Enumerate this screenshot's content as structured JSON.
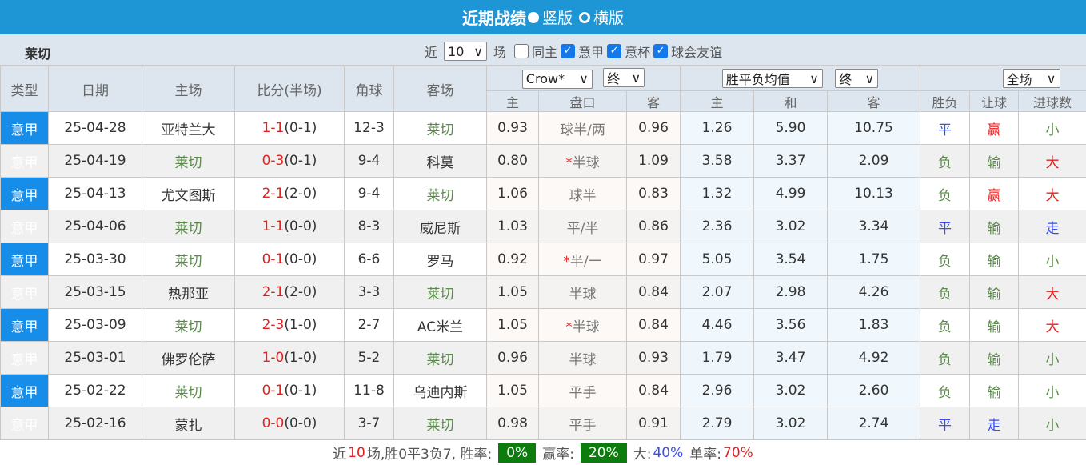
{
  "header": {
    "title": "近期战绩",
    "option_vertical": "竖版",
    "option_horizontal": "横版",
    "selected": "竖版"
  },
  "filter": {
    "team": "莱切",
    "recent_label": "近",
    "count": "10",
    "games_label": "场",
    "same_home": "同主",
    "same_home_checked": false,
    "comps": [
      {
        "label": "意甲",
        "checked": true
      },
      {
        "label": "意杯",
        "checked": true
      },
      {
        "label": "球会友谊",
        "checked": true
      }
    ]
  },
  "columns": {
    "type": "类型",
    "date": "日期",
    "home": "主场",
    "score": "比分(半场)",
    "corner": "角球",
    "away": "客场",
    "asian_company": "Crow*",
    "asian_stage": "终",
    "euro_type": "胜平负均值",
    "euro_stage": "终",
    "range": "全场",
    "sub": [
      "主",
      "盘口",
      "客",
      "主",
      "和",
      "客",
      "胜负",
      "让球",
      "进球数"
    ]
  },
  "arrow": "∨",
  "colors": {
    "header": "#1e96d6",
    "type_cell": "#168de8",
    "lecce": "#5a8a4a",
    "score": "#e32020",
    "badge": "#0c7d0c"
  },
  "rows": [
    {
      "type": "意甲",
      "date": "25-04-28",
      "home": "亚特兰大",
      "score": "1-1",
      "half": "(0-1)",
      "corner": "12-3",
      "away": "莱切",
      "ah": "0.93",
      "line": "球半/两",
      "star": false,
      "aa": "0.96",
      "eh": "1.26",
      "ed": "5.90",
      "ea": "10.75",
      "res": "平",
      "hc": "赢",
      "ou": "小"
    },
    {
      "type": "意甲",
      "date": "25-04-19",
      "home": "莱切",
      "score": "0-3",
      "half": "(0-1)",
      "corner": "9-4",
      "away": "科莫",
      "ah": "0.80",
      "line": "半球",
      "star": true,
      "aa": "1.09",
      "eh": "3.58",
      "ed": "3.37",
      "ea": "2.09",
      "res": "负",
      "hc": "输",
      "ou": "大"
    },
    {
      "type": "意甲",
      "date": "25-04-13",
      "home": "尤文图斯",
      "score": "2-1",
      "half": "(2-0)",
      "corner": "9-4",
      "away": "莱切",
      "ah": "1.06",
      "line": "球半",
      "star": false,
      "aa": "0.83",
      "eh": "1.32",
      "ed": "4.99",
      "ea": "10.13",
      "res": "负",
      "hc": "赢",
      "ou": "大"
    },
    {
      "type": "意甲",
      "date": "25-04-06",
      "home": "莱切",
      "score": "1-1",
      "half": "(0-0)",
      "corner": "8-3",
      "away": "威尼斯",
      "ah": "1.03",
      "line": "平/半",
      "star": false,
      "aa": "0.86",
      "eh": "2.36",
      "ed": "3.02",
      "ea": "3.34",
      "res": "平",
      "hc": "输",
      "ou": "走"
    },
    {
      "type": "意甲",
      "date": "25-03-30",
      "home": "莱切",
      "score": "0-1",
      "half": "(0-0)",
      "corner": "6-6",
      "away": "罗马",
      "ah": "0.92",
      "line": "半/一",
      "star": true,
      "aa": "0.97",
      "eh": "5.05",
      "ed": "3.54",
      "ea": "1.75",
      "res": "负",
      "hc": "输",
      "ou": "小"
    },
    {
      "type": "意甲",
      "date": "25-03-15",
      "home": "热那亚",
      "score": "2-1",
      "half": "(2-0)",
      "corner": "3-3",
      "away": "莱切",
      "ah": "1.05",
      "line": "半球",
      "star": false,
      "aa": "0.84",
      "eh": "2.07",
      "ed": "2.98",
      "ea": "4.26",
      "res": "负",
      "hc": "输",
      "ou": "大"
    },
    {
      "type": "意甲",
      "date": "25-03-09",
      "home": "莱切",
      "score": "2-3",
      "half": "(1-0)",
      "corner": "2-7",
      "away": "AC米兰",
      "ah": "1.05",
      "line": "半球",
      "star": true,
      "aa": "0.84",
      "eh": "4.46",
      "ed": "3.56",
      "ea": "1.83",
      "res": "负",
      "hc": "输",
      "ou": "大"
    },
    {
      "type": "意甲",
      "date": "25-03-01",
      "home": "佛罗伦萨",
      "score": "1-0",
      "half": "(1-0)",
      "corner": "5-2",
      "away": "莱切",
      "ah": "0.96",
      "line": "半球",
      "star": false,
      "aa": "0.93",
      "eh": "1.79",
      "ed": "3.47",
      "ea": "4.92",
      "res": "负",
      "hc": "输",
      "ou": "小"
    },
    {
      "type": "意甲",
      "date": "25-02-22",
      "home": "莱切",
      "score": "0-1",
      "half": "(0-1)",
      "corner": "11-8",
      "away": "乌迪内斯",
      "ah": "1.05",
      "line": "平手",
      "star": false,
      "aa": "0.84",
      "eh": "2.96",
      "ed": "3.02",
      "ea": "2.60",
      "res": "负",
      "hc": "输",
      "ou": "小"
    },
    {
      "type": "意甲",
      "date": "25-02-16",
      "home": "蒙扎",
      "score": "0-0",
      "half": "(0-0)",
      "corner": "3-7",
      "away": "莱切",
      "ah": "0.98",
      "line": "平手",
      "star": false,
      "aa": "0.91",
      "eh": "2.79",
      "ed": "3.02",
      "ea": "2.74",
      "res": "平",
      "hc": "走",
      "ou": "小"
    }
  ],
  "summary": {
    "p1": "近",
    "n": "10",
    "p2": "场,胜0平3负7, 胜率:",
    "win_rate": "0%",
    "p3": "赢率:",
    "cover_rate": "20%",
    "p4": "大:",
    "over_rate": "40%",
    "p5": "单率:",
    "odd_rate": "70%"
  }
}
